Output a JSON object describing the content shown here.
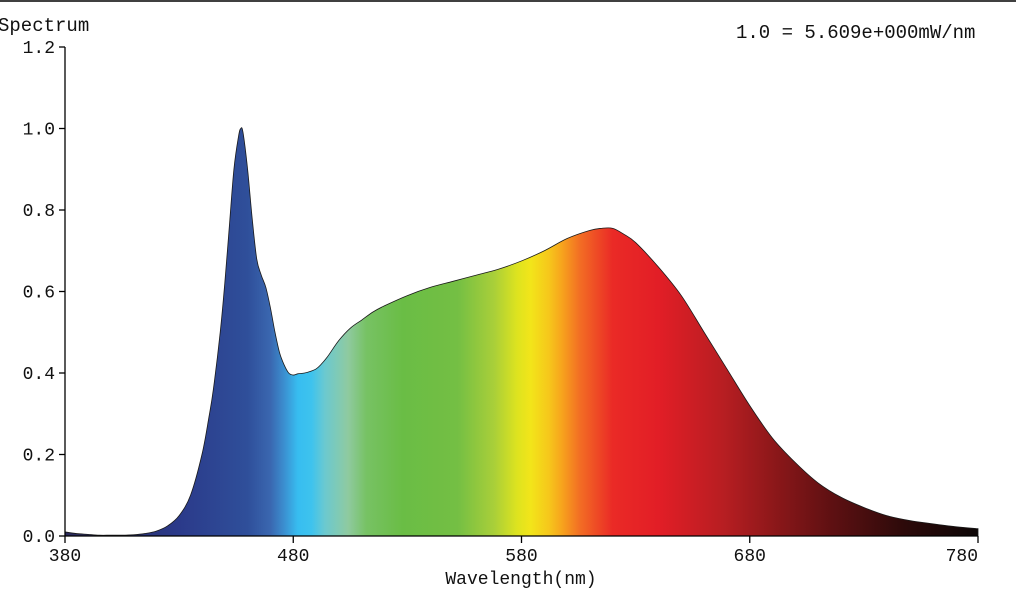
{
  "chart_data": {
    "type": "area",
    "title": "Spectrum",
    "scale_note": "1.0 = 5.609e+000mW/nm",
    "xlabel": "Wavelength(nm)",
    "ylabel": "",
    "xlim": [
      380,
      780
    ],
    "ylim": [
      0,
      1.2
    ],
    "x_ticks": [
      380,
      480,
      580,
      680,
      780
    ],
    "x_tick_labels": [
      "380",
      "480",
      "580",
      "680",
      "780"
    ],
    "y_ticks": [
      0,
      0.2,
      0.4,
      0.6,
      0.8,
      1.0,
      1.2
    ],
    "y_tick_labels": [
      "0.0",
      "0.2",
      "0.4",
      "0.6",
      "0.8",
      "1.0",
      "1.2"
    ],
    "grid": false,
    "fill": "visible-spectrum color gradient",
    "series": [
      {
        "x": [
          380,
          385,
          390,
          395,
          400,
          405,
          410,
          415,
          420,
          425,
          430,
          435,
          440,
          443,
          445,
          448,
          450,
          452,
          454,
          456,
          457,
          458,
          460,
          462,
          464,
          466,
          468,
          470,
          472,
          474,
          476,
          478,
          480,
          482,
          485,
          488,
          490,
          492,
          495,
          500,
          505,
          510,
          515,
          520,
          530,
          540,
          550,
          560,
          570,
          580,
          590,
          600,
          610,
          615,
          620,
          625,
          630,
          640,
          650,
          660,
          670,
          680,
          690,
          700,
          710,
          720,
          730,
          740,
          750,
          760,
          770,
          780
        ],
        "y": [
          0.01,
          0.006,
          0.004,
          0.002,
          0.002,
          0.002,
          0.003,
          0.006,
          0.012,
          0.025,
          0.05,
          0.1,
          0.2,
          0.29,
          0.36,
          0.5,
          0.62,
          0.76,
          0.9,
          0.98,
          1.0,
          0.99,
          0.9,
          0.78,
          0.68,
          0.64,
          0.61,
          0.56,
          0.5,
          0.45,
          0.42,
          0.4,
          0.395,
          0.398,
          0.4,
          0.405,
          0.41,
          0.42,
          0.44,
          0.48,
          0.51,
          0.53,
          0.55,
          0.565,
          0.59,
          0.61,
          0.625,
          0.64,
          0.655,
          0.675,
          0.7,
          0.73,
          0.75,
          0.755,
          0.755,
          0.74,
          0.72,
          0.66,
          0.59,
          0.5,
          0.41,
          0.32,
          0.24,
          0.18,
          0.13,
          0.095,
          0.07,
          0.05,
          0.038,
          0.03,
          0.023,
          0.018
        ]
      }
    ]
  }
}
